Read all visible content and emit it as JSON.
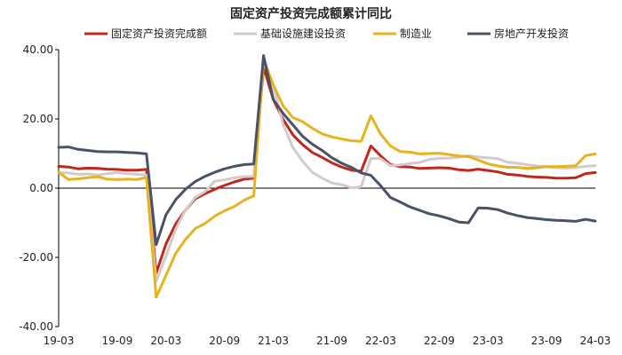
{
  "chart_data": {
    "type": "line",
    "title": "固定资产投资完成额累计同比",
    "xlabel": "",
    "ylabel": "",
    "ylim": [
      -40,
      40
    ],
    "y_ticks": [
      "40.00",
      "20.00",
      "0.00",
      "-20.00",
      "-40.00"
    ],
    "y_tick_values": [
      40,
      20,
      0,
      -20,
      -40
    ],
    "x_tick_labels": [
      "19-03",
      "19-09",
      "20-03",
      "20-09",
      "21-03",
      "21-09",
      "22-03",
      "22-09",
      "23-03",
      "23-09",
      "24-03"
    ],
    "x": [
      "19-03",
      "19-04",
      "19-05",
      "19-06",
      "19-07",
      "19-08",
      "19-09",
      "19-10",
      "19-11",
      "19-12",
      "20-02",
      "20-03",
      "20-04",
      "20-05",
      "20-06",
      "20-07",
      "20-08",
      "20-09",
      "20-10",
      "20-11",
      "20-12",
      "21-02",
      "21-03",
      "21-04",
      "21-05",
      "21-06",
      "21-07",
      "21-08",
      "21-09",
      "21-10",
      "21-11",
      "21-12",
      "22-02",
      "22-03",
      "22-04",
      "22-05",
      "22-06",
      "22-07",
      "22-08",
      "22-09",
      "22-10",
      "22-11",
      "22-12",
      "23-02",
      "23-03",
      "23-04",
      "23-05",
      "23-06",
      "23-07",
      "23-08",
      "23-09",
      "23-10",
      "23-11",
      "23-12",
      "24-02",
      "24-03"
    ],
    "legend_position": "top",
    "grid": false,
    "series": [
      {
        "name": "固定资产投资完成额",
        "color": "#c0281c",
        "values": [
          6.3,
          6.1,
          5.6,
          5.8,
          5.7,
          5.5,
          5.4,
          5.2,
          5.2,
          5.4,
          -24.5,
          -16.1,
          -10.3,
          -6.3,
          -3.1,
          -1.6,
          -0.3,
          0.8,
          1.8,
          2.6,
          2.9,
          35.0,
          25.6,
          19.9,
          15.4,
          12.6,
          10.3,
          8.9,
          7.3,
          6.1,
          5.2,
          4.9,
          12.2,
          9.3,
          6.8,
          6.2,
          6.1,
          5.7,
          5.8,
          5.9,
          5.8,
          5.3,
          5.1,
          5.5,
          5.1,
          4.7,
          4.0,
          3.8,
          3.4,
          3.2,
          3.1,
          2.9,
          2.9,
          3.0,
          4.2,
          4.5
        ]
      },
      {
        "name": "基础设施建设投资",
        "color": "#d4c9cb",
        "values": [
          4.4,
          4.4,
          4.0,
          4.1,
          3.8,
          4.2,
          4.5,
          4.2,
          4.0,
          3.8,
          -26.9,
          -19.7,
          -11.8,
          -6.3,
          -2.7,
          -1.0,
          2.0,
          2.4,
          3.0,
          3.3,
          3.4,
          36.6,
          29.7,
          18.4,
          11.8,
          7.8,
          4.6,
          2.9,
          1.5,
          1.0,
          0.1,
          0.4,
          8.6,
          8.5,
          6.5,
          6.7,
          7.1,
          7.4,
          8.3,
          8.6,
          8.7,
          8.9,
          9.4,
          9.0,
          8.8,
          8.5,
          7.5,
          7.2,
          6.8,
          6.4,
          6.2,
          5.9,
          5.8,
          5.9,
          6.3,
          6.5
        ]
      },
      {
        "name": "制造业",
        "color": "#e6b31e",
        "values": [
          4.6,
          2.5,
          2.7,
          3.0,
          3.3,
          2.6,
          2.5,
          2.6,
          2.5,
          3.1,
          -31.5,
          -25.2,
          -18.8,
          -14.8,
          -11.7,
          -10.2,
          -8.1,
          -6.5,
          -5.3,
          -3.5,
          -2.2,
          37.3,
          29.8,
          23.8,
          20.4,
          19.2,
          17.3,
          15.7,
          14.8,
          14.2,
          13.7,
          13.5,
          20.9,
          15.6,
          12.2,
          10.6,
          10.4,
          9.9,
          10.0,
          10.1,
          9.7,
          9.3,
          9.1,
          8.1,
          7.0,
          6.4,
          6.0,
          6.0,
          5.7,
          5.9,
          6.2,
          6.2,
          6.3,
          6.5,
          9.4,
          9.9
        ]
      },
      {
        "name": "房地产开发投资",
        "color": "#4a5268",
        "values": [
          11.8,
          11.9,
          11.2,
          10.9,
          10.6,
          10.5,
          10.5,
          10.3,
          10.2,
          9.9,
          -16.3,
          -7.7,
          -3.3,
          -0.3,
          1.9,
          3.4,
          4.6,
          5.6,
          6.3,
          6.8,
          7.0,
          38.3,
          25.6,
          21.6,
          18.3,
          15.0,
          12.7,
          10.9,
          8.8,
          7.2,
          6.0,
          4.4,
          3.7,
          0.7,
          -2.7,
          -4.0,
          -5.4,
          -6.4,
          -7.4,
          -8.0,
          -8.8,
          -9.8,
          -10.0,
          -5.7,
          -5.8,
          -6.2,
          -7.2,
          -7.9,
          -8.5,
          -8.8,
          -9.1,
          -9.3,
          -9.4,
          -9.6,
          -9.0,
          -9.5
        ]
      }
    ]
  }
}
